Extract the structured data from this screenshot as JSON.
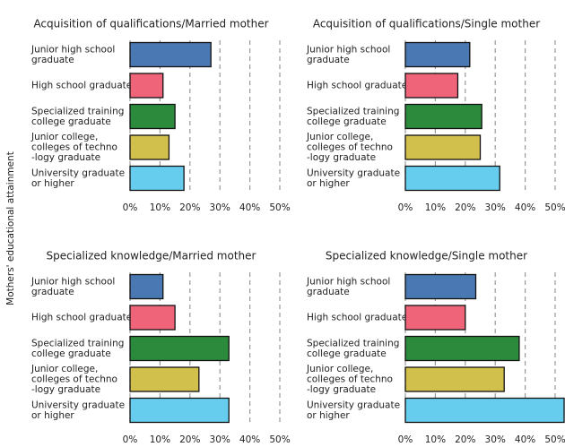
{
  "ylabel": "Mothers' educational attainment",
  "chart_data": [
    {
      "type": "bar",
      "orientation": "horizontal",
      "title": "Acquisition of qualifications/Married mother",
      "categories": [
        "Junior high school\ngraduate",
        "High school graduate",
        "Specialized training\ncollege graduate",
        "Junior college,\ncolleges of techno\n-logy graduate",
        "University graduate\nor higher"
      ],
      "values": [
        27,
        11,
        15,
        13,
        18
      ],
      "colors": [
        "#4a78b2",
        "#f0647a",
        "#2b8a3b",
        "#d2c04c",
        "#67cdef"
      ],
      "xlim": [
        0,
        50
      ],
      "xticks": [
        {
          "value": 0,
          "label": "0%"
        },
        {
          "value": 10,
          "label": "10%"
        },
        {
          "value": 20,
          "label": "20%"
        },
        {
          "value": 30,
          "label": "30%"
        },
        {
          "value": 40,
          "label": "40%"
        },
        {
          "value": 50,
          "label": "50%"
        }
      ],
      "grid": true
    },
    {
      "type": "bar",
      "orientation": "horizontal",
      "title": "Acquisition of qualifications/Single mother",
      "categories": [
        "Junior high school\ngraduate",
        "High school graduate",
        "Specialized training\ncollege graduate",
        "Junior college,\ncolleges of techno\n-logy graduate",
        "University graduate\nor higher"
      ],
      "values": [
        21.5,
        17.5,
        25.5,
        25,
        31.5
      ],
      "colors": [
        "#4a78b2",
        "#f0647a",
        "#2b8a3b",
        "#d2c04c",
        "#67cdef"
      ],
      "xlim": [
        0,
        50
      ],
      "xticks": [
        {
          "value": 0,
          "label": "0%"
        },
        {
          "value": 10,
          "label": "10%"
        },
        {
          "value": 20,
          "label": "20%"
        },
        {
          "value": 30,
          "label": "30%"
        },
        {
          "value": 40,
          "label": "40%"
        },
        {
          "value": 50,
          "label": "50%"
        }
      ],
      "grid": true
    },
    {
      "type": "bar",
      "orientation": "horizontal",
      "title": "Specialized knowledge/Married mother",
      "categories": [
        "Junior high school\ngraduate",
        "High school graduate",
        "Specialized training\ncollege graduate",
        "Junior college,\ncolleges of techno\n-logy graduate",
        "University graduate\nor higher"
      ],
      "values": [
        11,
        15,
        33,
        23,
        33
      ],
      "colors": [
        "#4a78b2",
        "#f0647a",
        "#2b8a3b",
        "#d2c04c",
        "#67cdef"
      ],
      "xlim": [
        0,
        50
      ],
      "xticks": [
        {
          "value": 0,
          "label": "0%"
        },
        {
          "value": 10,
          "label": "10%"
        },
        {
          "value": 20,
          "label": "20%"
        },
        {
          "value": 30,
          "label": "30%"
        },
        {
          "value": 40,
          "label": "40%"
        },
        {
          "value": 50,
          "label": "50%"
        }
      ],
      "grid": true
    },
    {
      "type": "bar",
      "orientation": "horizontal",
      "title": "Specialized knowledge/Single mother",
      "categories": [
        "Junior high school\ngraduate",
        "High school graduate",
        "Specialized training\ncollege graduate",
        "Junior college,\ncolleges of techno\n-logy graduate",
        "University graduate\nor higher"
      ],
      "values": [
        23.5,
        20,
        38,
        33,
        53
      ],
      "colors": [
        "#4a78b2",
        "#f0647a",
        "#2b8a3b",
        "#d2c04c",
        "#67cdef"
      ],
      "xlim": [
        0,
        50
      ],
      "xticks": [
        {
          "value": 0,
          "label": "0%"
        },
        {
          "value": 10,
          "label": "10%"
        },
        {
          "value": 20,
          "label": "20%"
        },
        {
          "value": 30,
          "label": "30%"
        },
        {
          "value": 40,
          "label": "40%"
        },
        {
          "value": 50,
          "label": "50%"
        }
      ],
      "grid": true
    }
  ]
}
